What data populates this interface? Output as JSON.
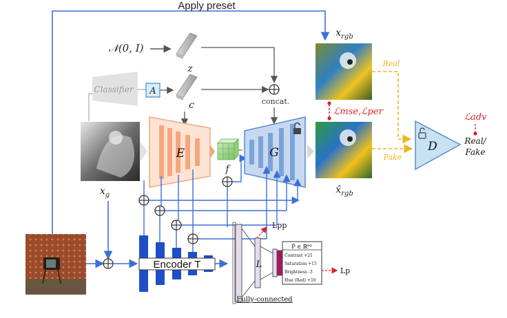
{
  "labels": {
    "apply_preset": "Apply preset",
    "noise": "𝒩(0, I)",
    "z": "z",
    "classifier": "Classifier",
    "A": "A",
    "c": "c",
    "concat": "concat.",
    "E": "E",
    "f": "f",
    "G": "G",
    "D": "D",
    "x_rgb": "x",
    "x_rgb_sub": "rgb",
    "x_hat_rgb": "x̂",
    "x_hat_rgb_sub": "rgb",
    "x_g": "x",
    "x_g_sub": "g",
    "real": "Real",
    "fake": "Fake",
    "loss_mse_per": "ℒmse,ℒper",
    "loss_adv": "ℒadv",
    "real_fake_1": "Real/",
    "real_fake_2": "Fake",
    "encoder_t": "Encoder T",
    "L": "L",
    "L_pp": "Lpp",
    "L_p": "Lp",
    "fully_connected": "Fully-connected"
  },
  "preset_box": {
    "title": "P̂ ∈ ℝ⁶⁹",
    "rows": [
      "Contrast +21",
      "Saturation +15",
      "Brightness -3",
      "Hue (Red) +10"
    ]
  },
  "colors": {
    "blue_line": "#3b6fd8",
    "orange": "#f4a77e",
    "orange_fill": "#fde3d3",
    "blue_fill": "#c6d9f0",
    "gray": "#9a9a9a",
    "red": "#d9202a",
    "yellow": "#f0b323",
    "encoder_blue": "#1f4fc7",
    "magenta": "#b0105e"
  }
}
